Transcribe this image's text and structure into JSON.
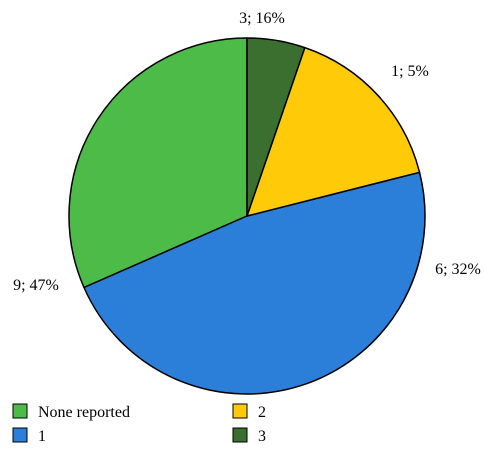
{
  "chart_data": {
    "type": "pie",
    "slices": [
      {
        "name": "None reported",
        "count": 6,
        "label": "6; 32%",
        "color": "#4cbb47"
      },
      {
        "name": "1",
        "count": 9,
        "label": "9; 47%",
        "color": "#2b7fd8"
      },
      {
        "name": "2",
        "count": 3,
        "label": "3; 16%",
        "color": "#ffca08"
      },
      {
        "name": "3",
        "count": 1,
        "label": "1; 5%",
        "color": "#3a6f30"
      }
    ],
    "legend": [
      {
        "name": "None reported",
        "color": "#4cbb47"
      },
      {
        "name": "2",
        "color": "#ffca08"
      },
      {
        "name": "1",
        "color": "#2b7fd8"
      },
      {
        "name": "3",
        "color": "#3a6f30"
      }
    ],
    "legend_position": "bottom-left"
  }
}
